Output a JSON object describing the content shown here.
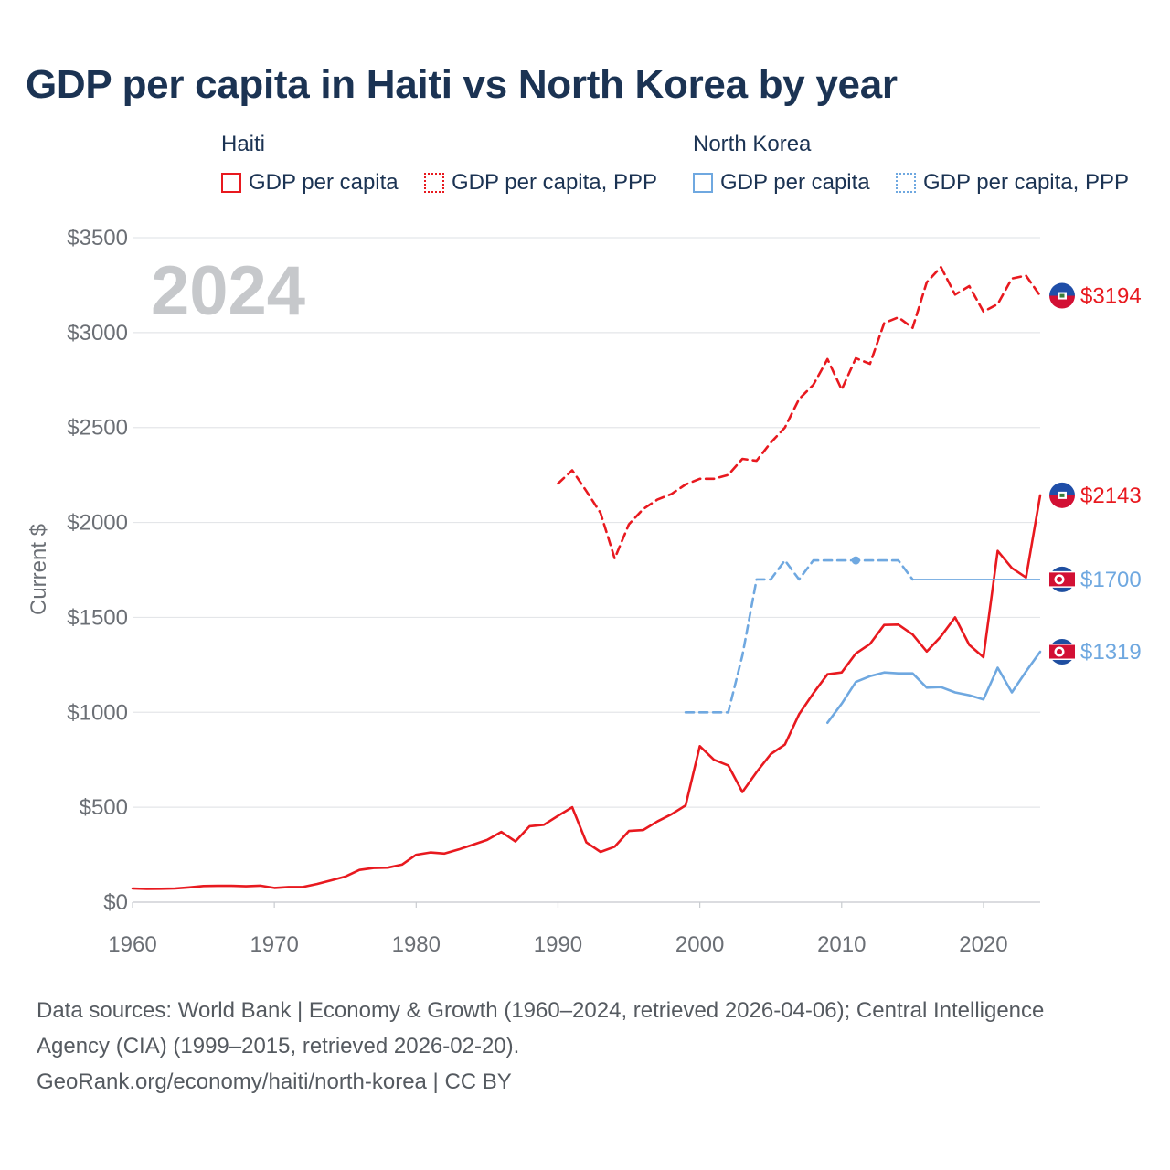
{
  "title": "GDP per capita in Haiti vs North Korea by year",
  "legend": {
    "groups": [
      {
        "name": "Haiti",
        "color": "#e8191f",
        "items": [
          "GDP per capita",
          "GDP per capita, PPP"
        ]
      },
      {
        "name": "North Korea",
        "color": "#6fa8e0",
        "items": [
          "GDP per capita",
          "GDP per capita, PPP"
        ]
      }
    ]
  },
  "year_watermark": "2024",
  "chart_data": {
    "type": "line",
    "ylabel": "Current $",
    "xlim": [
      1960,
      2024
    ],
    "ylim": [
      0,
      3500
    ],
    "xticks": [
      1960,
      1970,
      1980,
      1990,
      2000,
      2010,
      2020
    ],
    "xtick_labels": [
      "1960",
      "1970",
      "1980",
      "1990",
      "2000",
      "2010",
      "2020"
    ],
    "yticks": [
      0,
      500,
      1000,
      1500,
      2000,
      2500,
      3000,
      3500
    ],
    "ytick_labels": [
      "$0",
      "$500",
      "$1000",
      "$1500",
      "$2000",
      "$2500",
      "$3000",
      "$3500"
    ],
    "grid": true,
    "series": [
      {
        "name": "Haiti GDP per capita",
        "color": "#e8191f",
        "style": "solid",
        "x": [
          1960,
          1961,
          1962,
          1963,
          1964,
          1965,
          1966,
          1967,
          1968,
          1969,
          1970,
          1971,
          1972,
          1973,
          1974,
          1975,
          1976,
          1977,
          1978,
          1979,
          1980,
          1981,
          1982,
          1983,
          1984,
          1985,
          1986,
          1987,
          1988,
          1989,
          1990,
          1991,
          1992,
          1993,
          1994,
          1995,
          1996,
          1997,
          1998,
          1999,
          2000,
          2001,
          2002,
          2003,
          2004,
          2005,
          2006,
          2007,
          2008,
          2009,
          2010,
          2011,
          2012,
          2013,
          2014,
          2015,
          2016,
          2017,
          2018,
          2019,
          2020,
          2021,
          2022,
          2023,
          2024
        ],
        "y": [
          72,
          70,
          71,
          72,
          78,
          85,
          86,
          86,
          84,
          87,
          75,
          80,
          80,
          96,
          115,
          135,
          170,
          180,
          182,
          198,
          250,
          262,
          256,
          278,
          303,
          328,
          370,
          320,
          400,
          408,
          455,
          500,
          315,
          265,
          292,
          375,
          380,
          425,
          463,
          510,
          822,
          750,
          720,
          580,
          685,
          780,
          830,
          990,
          1100,
          1200,
          1210,
          1310,
          1360,
          1460,
          1462,
          1410,
          1320,
          1400,
          1500,
          1355,
          1290,
          1850,
          1760,
          1710,
          2143
        ],
        "end_label": "$2143"
      },
      {
        "name": "Haiti GDP per capita, PPP",
        "color": "#e8191f",
        "style": "dashed",
        "x": [
          1990,
          1991,
          1992,
          1993,
          1994,
          1995,
          1996,
          1997,
          1998,
          1999,
          2000,
          2001,
          2002,
          2003,
          2004,
          2005,
          2006,
          2007,
          2008,
          2009,
          2010,
          2011,
          2012,
          2013,
          2014,
          2015,
          2016,
          2017,
          2018,
          2019,
          2020,
          2021,
          2022,
          2023,
          2024
        ],
        "y": [
          2205,
          2275,
          2165,
          2050,
          1810,
          1990,
          2070,
          2120,
          2150,
          2200,
          2230,
          2230,
          2250,
          2335,
          2325,
          2420,
          2500,
          2650,
          2725,
          2860,
          2700,
          2865,
          2835,
          3050,
          3080,
          3025,
          3265,
          3345,
          3200,
          3245,
          3110,
          3150,
          3285,
          3300,
          3194
        ],
        "end_label": "$3194"
      },
      {
        "name": "North Korea GDP per capita",
        "color": "#6fa8e0",
        "style": "solid",
        "x": [
          2009,
          2010,
          2011,
          2012,
          2013,
          2014,
          2015,
          2016,
          2017,
          2018,
          2019,
          2020,
          2021,
          2022,
          2023,
          2024
        ],
        "y": [
          945,
          1045,
          1160,
          1190,
          1210,
          1205,
          1205,
          1130,
          1133,
          1105,
          1090,
          1068,
          1235,
          1105,
          1215,
          1319
        ],
        "end_label": "$1319"
      },
      {
        "name": "North Korea GDP per capita, PPP",
        "color": "#6fa8e0",
        "style": "dashed",
        "x": [
          1999,
          2000,
          2001,
          2002,
          2003,
          2004,
          2005,
          2006,
          2007,
          2008,
          2009,
          2010,
          2011,
          2012,
          2013,
          2014,
          2015
        ],
        "y": [
          1000,
          1000,
          1000,
          1000,
          1300,
          1700,
          1700,
          1800,
          1700,
          1800,
          1800,
          1800,
          1800,
          1800,
          1800,
          1800,
          1700
        ],
        "marker_x": 2011,
        "extension": {
          "from": 2015,
          "to": 2024,
          "y": 1700
        },
        "end_label": "$1700"
      }
    ]
  },
  "sources": {
    "line1": "Data sources: World Bank | Economy & Growth (1960–2024, retrieved 2026-04-06); Central Intelligence",
    "line2": "Agency (CIA) (1999–2015, retrieved 2026-02-20).",
    "line3": "GeoRank.org/economy/haiti/north-korea | CC BY"
  }
}
